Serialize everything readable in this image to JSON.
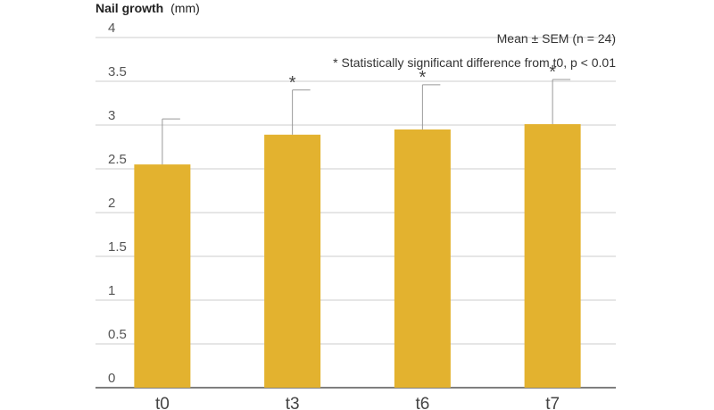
{
  "chart_data": {
    "type": "bar",
    "ylabel_bold": "Nail growth",
    "ylabel_unit": "(mm)",
    "categories": [
      "t0",
      "t3",
      "t6",
      "t7"
    ],
    "values": [
      2.55,
      2.89,
      2.95,
      3.01
    ],
    "errors": [
      0.52,
      0.51,
      0.51,
      0.51
    ],
    "significant": [
      false,
      true,
      true,
      true
    ],
    "significance_marker": "*",
    "yticks": [
      "0",
      "0.5",
      "1",
      "1.5",
      "2",
      "2.5",
      "3",
      "3.5",
      "4"
    ],
    "ylim": [
      0,
      4
    ],
    "grid": true,
    "notes": [
      "Mean ± SEM (n = 24)",
      "* Statistically significant difference from t0, p < 0.01"
    ],
    "bar_color": "#E3B22F",
    "error_color": "#999999",
    "grid_color": "#CCCCCC",
    "axis_color": "#555555"
  }
}
